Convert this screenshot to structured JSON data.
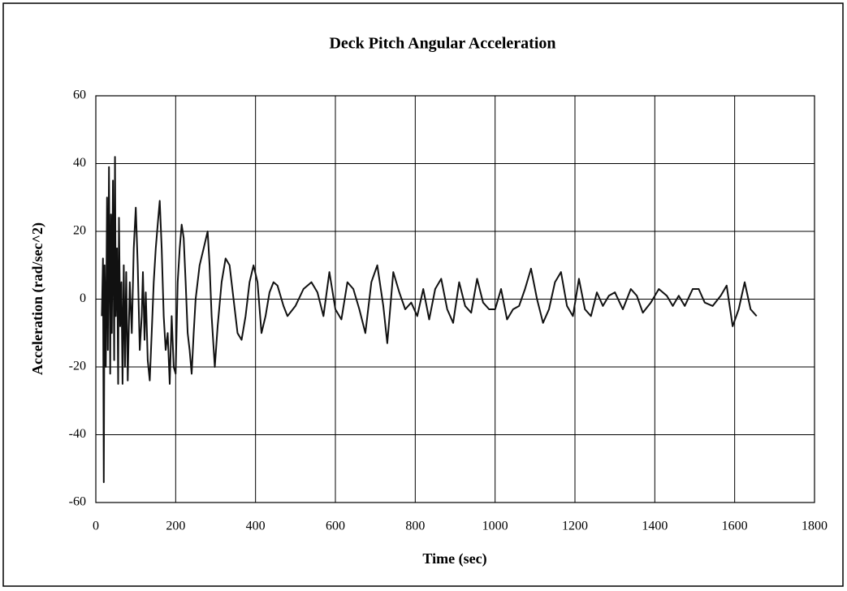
{
  "chart_data": {
    "type": "line",
    "title": "Deck Pitch Angular Acceleration",
    "x_label": "Time (sec)",
    "y_label": "Acceleration (rad/sec^2)",
    "color": "#111111",
    "grid": true,
    "xlim": [
      0,
      1800
    ],
    "xticks": [
      0,
      200,
      400,
      600,
      800,
      1000,
      1200,
      1400,
      1600,
      1800
    ],
    "ylim": [
      -60,
      60
    ],
    "yticks": [
      -60,
      -40,
      -20,
      0,
      20,
      40,
      60
    ],
    "x": [
      15,
      18,
      20,
      22,
      25,
      28,
      30,
      33,
      36,
      38,
      40,
      43,
      46,
      48,
      50,
      53,
      56,
      58,
      61,
      64,
      67,
      70,
      73,
      76,
      80,
      85,
      90,
      95,
      100,
      105,
      110,
      115,
      118,
      122,
      125,
      130,
      135,
      140,
      145,
      150,
      155,
      160,
      165,
      170,
      175,
      180,
      185,
      190,
      195,
      200,
      205,
      210,
      215,
      220,
      225,
      230,
      235,
      240,
      245,
      250,
      260,
      270,
      280,
      285,
      290,
      298,
      305,
      315,
      325,
      335,
      345,
      355,
      365,
      375,
      385,
      395,
      405,
      415,
      425,
      435,
      445,
      455,
      470,
      480,
      500,
      520,
      540,
      555,
      570,
      585,
      600,
      615,
      630,
      645,
      660,
      675,
      690,
      705,
      720,
      730,
      745,
      760,
      775,
      790,
      805,
      820,
      835,
      850,
      865,
      880,
      895,
      910,
      925,
      940,
      955,
      970,
      985,
      1000,
      1015,
      1030,
      1045,
      1060,
      1075,
      1090,
      1105,
      1120,
      1135,
      1150,
      1165,
      1180,
      1195,
      1210,
      1225,
      1240,
      1255,
      1270,
      1285,
      1300,
      1320,
      1340,
      1355,
      1370,
      1390,
      1410,
      1430,
      1445,
      1460,
      1475,
      1495,
      1510,
      1525,
      1545,
      1565,
      1580,
      1595,
      1610,
      1625,
      1640,
      1655
    ],
    "values": [
      -5,
      12,
      -54,
      10,
      -20,
      30,
      -15,
      39,
      -22,
      25,
      -10,
      35,
      -18,
      42,
      -5,
      15,
      -25,
      24,
      -8,
      5,
      -25,
      10,
      -20,
      8,
      -24,
      5,
      -10,
      15,
      27,
      10,
      -15,
      -5,
      8,
      -12,
      2,
      -18,
      -24,
      -10,
      5,
      15,
      22,
      29,
      15,
      -5,
      -15,
      -10,
      -25,
      -5,
      -20,
      -22,
      5,
      15,
      22,
      18,
      5,
      -10,
      -15,
      -22,
      -10,
      0,
      10,
      15,
      20,
      10,
      -5,
      -20,
      -8,
      5,
      12,
      10,
      0,
      -10,
      -12,
      -5,
      5,
      10,
      5,
      -10,
      -5,
      2,
      5,
      4,
      -2,
      -5,
      -2,
      3,
      5,
      2,
      -5,
      8,
      -3,
      -6,
      5,
      3,
      -3,
      -10,
      5,
      10,
      -2,
      -13,
      8,
      2,
      -3,
      -1,
      -5,
      3,
      -6,
      3,
      6,
      -3,
      -7,
      5,
      -2,
      -4,
      6,
      -1,
      -3,
      -3,
      3,
      -6,
      -3,
      -2,
      3,
      9,
      0,
      -7,
      -3,
      5,
      8,
      -2,
      -5,
      6,
      -3,
      -5,
      2,
      -2,
      1,
      2,
      -3,
      3,
      1,
      -4,
      -1,
      3,
      1,
      -2,
      1,
      -2,
      3,
      3,
      -1,
      -2,
      1,
      4,
      -8,
      -3,
      5,
      -3,
      -5
    ]
  }
}
